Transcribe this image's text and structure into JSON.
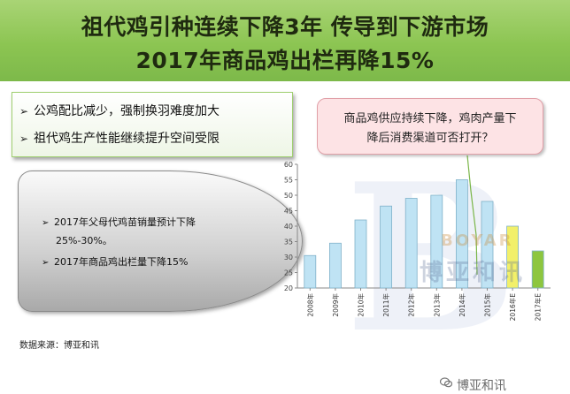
{
  "header": {
    "title_line1": "祖代鸡引种连续下降3年  传导到下游市场",
    "title_line2": "2017年商品鸡出栏再降15%"
  },
  "bullets": [
    "公鸡配比减少，强制换羽难度加大",
    "祖代鸡生产性能继续提升空间受限"
  ],
  "gray_box": {
    "item1_line1": "2017年父母代鸡苗销量预计下降",
    "item1_line2": "25%-30%。",
    "item2": "2017年商品鸡出栏量下降15%"
  },
  "callout": {
    "line1": "商品鸡供应持续下降，鸡肉产量下",
    "line2": "降后消费渠道可否打开？"
  },
  "source": "数据来源：博亚和讯",
  "watermark": {
    "brand_latin": "BOYAR",
    "brand_cn": "博亚和讯",
    "footer_text": "博亚和讯",
    "logo_letter": "B"
  },
  "colors": {
    "header_green": "#8cc552",
    "bar_blue": "#bfe3f4",
    "bar_yellow": "#f2f06a",
    "bar_green": "#8dc63f",
    "callout_pink": "#fde3e5"
  },
  "chart_data": {
    "type": "bar",
    "categories": [
      "2008年",
      "2009年",
      "2010年",
      "2011年",
      "2012年",
      "2013年",
      "2014年",
      "2015年",
      "2016年E",
      "2017年E"
    ],
    "values": [
      30.5,
      34.5,
      42,
      46.5,
      49,
      50,
      55,
      48,
      40,
      32
    ],
    "bar_colors": [
      "#bfe3f4",
      "#bfe3f4",
      "#bfe3f4",
      "#bfe3f4",
      "#bfe3f4",
      "#bfe3f4",
      "#bfe3f4",
      "#bfe3f4",
      "#f2f06a",
      "#8dc63f"
    ],
    "ylim": [
      20,
      60
    ],
    "yticks": [
      20,
      25,
      30,
      35,
      40,
      45,
      50,
      55,
      60
    ],
    "grid": false,
    "title": "",
    "xlabel": "",
    "ylabel": ""
  }
}
